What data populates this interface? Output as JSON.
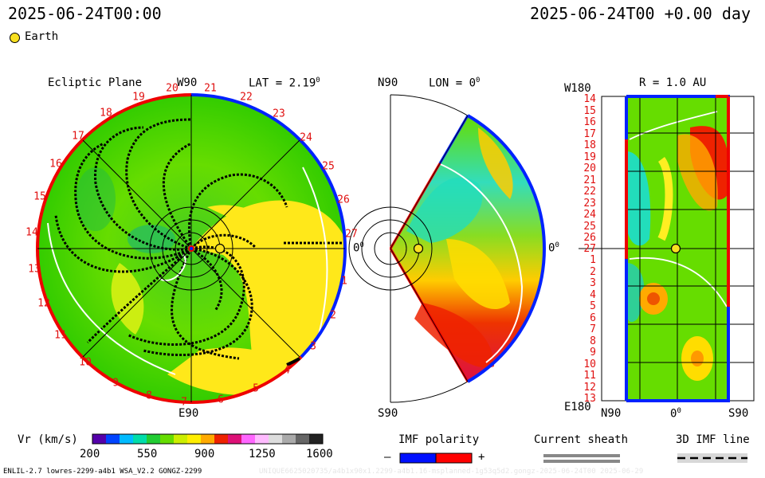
{
  "header": {
    "left_timestamp": "2025-06-24T00:00",
    "right_timestamp": "2025-06-24T00 +0.00 day"
  },
  "legend": {
    "earth_label": "Earth",
    "earth_color": "#f8e020"
  },
  "ecliptic": {
    "title": "Ecliptic Plane",
    "top_label": "W90",
    "lat_label": "LAT = 2.19",
    "lat_deg": "0",
    "bottom_label": "E90",
    "right_label": "0",
    "right_deg": "0",
    "rim_numbers": [
      "20",
      "21",
      "22",
      "23",
      "24",
      "25",
      "26",
      "27",
      "1",
      "2",
      "3",
      "4",
      "5",
      "6",
      "7",
      "8",
      "9",
      "10",
      "11",
      "12",
      "13",
      "14",
      "15",
      "16",
      "17",
      "18",
      "19"
    ]
  },
  "meridional": {
    "top_label": "N90",
    "lon_label": "LON = 0",
    "lon_deg": "0",
    "bottom_label": "S90",
    "right_label": "0",
    "right_deg": "0"
  },
  "radius_map": {
    "title": "R = 1.0 AU",
    "top_left": "W180",
    "bottom_left": "E180",
    "x_left": "N90",
    "x_mid": "0",
    "x_mid_deg": "0",
    "x_right": "S90",
    "carrington_labels": [
      "14",
      "15",
      "16",
      "17",
      "18",
      "19",
      "20",
      "21",
      "22",
      "23",
      "24",
      "25",
      "26",
      "27",
      "1",
      "2",
      "3",
      "4",
      "5",
      "6",
      "7",
      "8",
      "9",
      "10",
      "11",
      "12",
      "13"
    ]
  },
  "colorbar": {
    "label": "Vr (km/s)",
    "ticks": [
      "200",
      "550",
      "900",
      "1250",
      "1600"
    ]
  },
  "imf_polarity": {
    "label": "IMF polarity",
    "minus": "–",
    "plus": "+",
    "neg_color": "#0010ff",
    "pos_color": "#ff0000"
  },
  "current_sheath": {
    "label": "Current sheath"
  },
  "imf_line": {
    "label": "3D IMF line"
  },
  "footer": {
    "left": "ENLIL-2.7 lowres-2299-a4b1 WSA_V2.2 GONGZ-2299",
    "right": "UNIQUE6625020735/a4b1x90x1.2299-a4b1.16-msplanned-1g53q5d2.gongz-2025-06-24T00 2025-06-29"
  }
}
